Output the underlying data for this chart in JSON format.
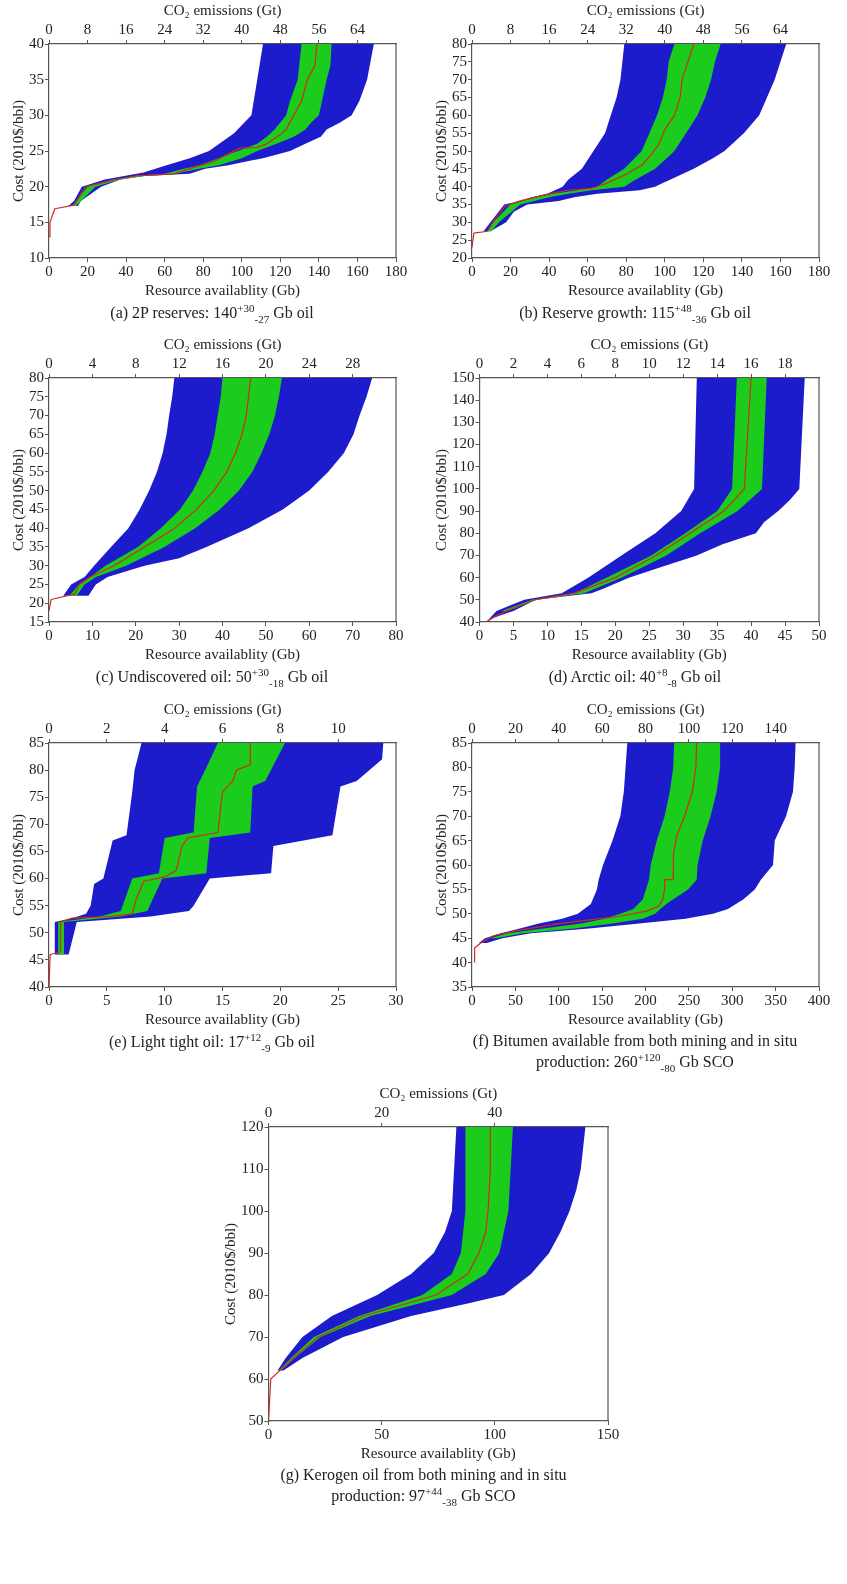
{
  "chart_data": [
    {
      "type": "line",
      "title": "(a) 2P reserves: 140$^{+30}$$_{-27}$ Gb oil",
      "xlabel": "Resource availablity (Gb)",
      "ylabel": "Cost (2010$/bbl)",
      "x2label": "CO₂ emissions (Gt)",
      "xlim": [
        0,
        180
      ],
      "xticks": [
        0,
        20,
        40,
        60,
        80,
        100,
        120,
        140,
        160,
        180
      ],
      "x2lim": [
        0,
        72
      ],
      "x2ticks": [
        0,
        8,
        16,
        24,
        32,
        40,
        48,
        56,
        64
      ],
      "ylim": [
        10,
        40
      ],
      "yticks": [
        10,
        15,
        20,
        25,
        30,
        35,
        40
      ],
      "series": [
        {
          "type": "area",
          "color": "#1c1ccc",
          "x": [
            10,
            13,
            17,
            29,
            39,
            49,
            61,
            73,
            83,
            96,
            105,
            108,
            111,
            168.5,
            165,
            161,
            157,
            151,
            144,
            141,
            133,
            125,
            111,
            93,
            81,
            73,
            49,
            37,
            27,
            16.5,
            15
          ],
          "values": [
            17.3,
            18,
            20,
            21,
            21.5,
            22,
            23,
            24,
            25,
            27.5,
            30,
            35,
            40,
            40,
            35,
            32,
            30,
            29,
            28,
            27,
            26,
            25,
            24,
            23,
            22.5,
            21.8,
            21.5,
            21,
            20,
            18,
            17.3
          ]
        },
        {
          "type": "area",
          "color": "#1ccc1c",
          "x": [
            12,
            20,
            33,
            45,
            60,
            70,
            78,
            88,
            98,
            108,
            113,
            117,
            120,
            123,
            125,
            129,
            131,
            146.6,
            146,
            144,
            140,
            136,
            133,
            127,
            118,
            108,
            100,
            88,
            78,
            65,
            50,
            37,
            24,
            14
          ],
          "values": [
            17.3,
            20,
            21,
            21.5,
            21.8,
            22.5,
            23,
            24,
            25,
            26,
            27,
            28,
            29,
            30,
            32,
            35,
            40,
            40,
            37,
            35,
            30,
            29,
            28,
            27,
            26,
            25,
            24,
            23,
            22.5,
            21.8,
            21.5,
            21,
            20,
            17.3
          ]
        },
        {
          "type": "line",
          "color": "#d22a1a",
          "x": [
            0,
            0.5,
            3,
            13,
            19,
            35,
            45,
            65,
            75,
            85,
            99,
            108,
            113,
            120,
            123,
            127,
            131,
            134,
            138,
            139
          ],
          "values": [
            13,
            15,
            16.9,
            17.4,
            20,
            21,
            21.5,
            21.8,
            22.7,
            23.5,
            25.4,
            25.5,
            26,
            27.3,
            28,
            30,
            32,
            35,
            37,
            40
          ]
        }
      ]
    },
    {
      "type": "line",
      "title": "(b) Reserve growth: 115$^{+48}$$_{-36}$ Gb oil",
      "xlabel": "Resource availablity (Gb)",
      "ylabel": "Cost (2010$/bbl)",
      "x2label": "CO₂ emissions (Gt)",
      "xlim": [
        0,
        180
      ],
      "xticks": [
        0,
        20,
        40,
        60,
        80,
        100,
        120,
        140,
        160,
        180
      ],
      "x2lim": [
        0,
        72
      ],
      "x2ticks": [
        0,
        8,
        16,
        24,
        32,
        40,
        48,
        56,
        64
      ],
      "ylim": [
        20,
        80
      ],
      "yticks": [
        20,
        25,
        30,
        35,
        40,
        45,
        50,
        55,
        60,
        65,
        70,
        75,
        80
      ],
      "series": [
        {
          "type": "area",
          "color": "#1c1ccc",
          "x": [
            6,
            9.6,
            16.7,
            25,
            31,
            39,
            43,
            47,
            50,
            57,
            63,
            69,
            72,
            75,
            77,
            78,
            79,
            163,
            160,
            157,
            153,
            149,
            141,
            131,
            125,
            115,
            103,
            99,
            95,
            87,
            65,
            53,
            45,
            28.7,
            21.7,
            17.7,
            9.6
          ],
          "values": [
            27.5,
            30,
            35,
            36,
            37,
            38,
            39,
            40,
            42,
            45,
            50,
            55,
            60,
            65,
            70,
            75,
            80,
            80,
            75,
            70,
            65,
            60,
            55,
            50,
            48,
            45,
            42,
            41,
            40,
            39,
            38,
            37,
            36,
            35,
            33,
            30,
            27.5
          ]
        },
        {
          "type": "area",
          "color": "#1ccc1c",
          "x": [
            8,
            11,
            20,
            33,
            42,
            55,
            65,
            70,
            79,
            88,
            92,
            96,
            99,
            101,
            102,
            105,
            129,
            126,
            124,
            121,
            117,
            111,
            105,
            101,
            95,
            85,
            79,
            62,
            50,
            40,
            25,
            14,
            10
          ],
          "values": [
            27.5,
            30,
            35,
            37,
            38,
            39,
            40,
            42,
            45,
            50,
            55,
            60,
            65,
            70,
            75,
            80,
            80,
            75,
            70,
            65,
            60,
            55,
            50,
            48,
            45,
            42,
            40,
            39,
            38,
            37,
            35,
            30,
            27.5
          ]
        },
        {
          "type": "line",
          "color": "#d22a1a",
          "x": [
            0,
            1,
            8,
            12,
            17,
            25,
            40,
            50,
            62,
            70,
            80,
            88,
            93,
            97,
            100,
            105,
            108,
            109,
            112,
            115
          ],
          "values": [
            23,
            27,
            27.5,
            31,
            34.5,
            36,
            38,
            39,
            39.5,
            41,
            43.5,
            46,
            49,
            52,
            56,
            60,
            65,
            70,
            75,
            80
          ]
        }
      ]
    },
    {
      "type": "line",
      "title": "(c) Undiscovered oil: 50$^{+30}$$_{-18}$ Gb oil",
      "xlabel": "Resource availablity (Gb)",
      "ylabel": "Cost (2010$/bbl)",
      "x2label": "CO₂ emissions (Gt)",
      "xlim": [
        0,
        80
      ],
      "xticks": [
        0,
        10,
        20,
        30,
        40,
        50,
        60,
        70,
        80
      ],
      "x2lim": [
        0,
        32
      ],
      "x2ticks": [
        0,
        4,
        8,
        12,
        16,
        20,
        24,
        28
      ],
      "ylim": [
        15,
        80
      ],
      "yticks": [
        15,
        20,
        25,
        30,
        35,
        40,
        45,
        50,
        55,
        60,
        65,
        70,
        75,
        80
      ],
      "series": [
        {
          "type": "area",
          "color": "#1c1ccc",
          "x": [
            3.3,
            5.1,
            8.2,
            10.4,
            14.3,
            18.3,
            20.9,
            23.1,
            24.9,
            26.2,
            27.1,
            27.7,
            28.4,
            28.9,
            74.5,
            73.2,
            71.6,
            70.2,
            68,
            64.4,
            60,
            53.9,
            46,
            36.3,
            30,
            22,
            13.5,
            10.8,
            9.1
          ],
          "values": [
            22,
            25,
            27,
            30,
            35,
            40,
            45,
            50,
            55,
            60,
            65,
            70,
            75,
            80,
            80,
            75,
            70,
            65,
            60,
            55,
            50,
            45,
            40,
            35,
            32,
            30,
            27,
            25,
            22
          ]
        },
        {
          "type": "area",
          "color": "#1ccc1c",
          "x": [
            4.7,
            6.9,
            9.5,
            13,
            20.5,
            25.8,
            30.2,
            33.2,
            35.4,
            37.2,
            38.2,
            38.9,
            39.6,
            40,
            53.7,
            53,
            52.1,
            50.8,
            49,
            46.9,
            43.8,
            39.4,
            33.7,
            26.6,
            17.8,
            10.8,
            8.2,
            6.4
          ],
          "values": [
            22,
            25,
            27,
            30,
            35,
            40,
            45,
            50,
            55,
            60,
            65,
            70,
            75,
            80,
            80,
            75,
            70,
            65,
            60,
            55,
            50,
            45,
            40,
            35,
            30,
            27,
            25,
            22
          ]
        },
        {
          "type": "line",
          "color": "#d22a1a",
          "x": [
            0,
            0.5,
            6,
            7,
            9.5,
            15,
            22,
            29,
            34,
            38,
            41,
            43,
            44.5,
            45.5,
            46,
            46.5
          ],
          "values": [
            18,
            21,
            22.5,
            25,
            27,
            30,
            35,
            40,
            45,
            50,
            55,
            60,
            65,
            70,
            75,
            80
          ]
        }
      ]
    },
    {
      "type": "line",
      "title": "(d) Arctic oil: 40$^{+8}$$_{-8}$ Gb oil",
      "xlabel": "Resource availablity (Gb)",
      "ylabel": "Cost (2010$/bbl)",
      "x2label": "CO₂ emissions (Gt)",
      "xlim": [
        0,
        50
      ],
      "xticks": [
        0,
        5,
        10,
        15,
        20,
        25,
        30,
        35,
        40,
        45,
        50
      ],
      "x2lim": [
        0,
        20
      ],
      "x2ticks": [
        0,
        2,
        4,
        6,
        8,
        10,
        12,
        14,
        16,
        18
      ],
      "ylim": [
        40,
        150
      ],
      "yticks": [
        40,
        50,
        60,
        70,
        80,
        90,
        100,
        110,
        120,
        130,
        140,
        150
      ],
      "series": [
        {
          "type": "area",
          "color": "#1c1ccc",
          "x": [
            1,
            2.5,
            6.6,
            12.1,
            16,
            20.9,
            25.9,
            29.7,
            31.6,
            32,
            47.9,
            47.1,
            45.7,
            44,
            41.9,
            40.7,
            35.8,
            32,
            27,
            22,
            18.2,
            16.5,
            8.3,
            5,
            2.2
          ],
          "values": [
            40,
            45,
            50,
            53,
            60,
            70,
            80,
            90,
            100,
            150,
            150,
            100,
            95,
            90,
            85,
            80,
            75,
            70,
            65,
            60,
            55,
            53,
            50,
            45,
            42
          ]
        },
        {
          "type": "area",
          "color": "#1ccc1c",
          "x": [
            3.3,
            7.7,
            14,
            18.7,
            25.3,
            30.3,
            35,
            37.2,
            37.9,
            42.3,
            41.6,
            38,
            32.5,
            27.5,
            20.9,
            15.4,
            8.5,
            4.1
          ],
          "values": [
            45,
            50,
            53,
            60,
            70,
            80,
            90,
            100,
            150,
            150,
            100,
            90,
            80,
            70,
            60,
            53,
            50,
            45
          ]
        },
        {
          "type": "line",
          "color": "#d22a1a",
          "x": [
            1,
            2,
            4,
            8,
            14,
            20,
            26,
            31,
            36,
            39,
            39.5,
            40
          ],
          "values": [
            40,
            42,
            45,
            50,
            53,
            60,
            70,
            80,
            90,
            100,
            125,
            150
          ]
        }
      ]
    },
    {
      "type": "line",
      "title": "(e) Light tight oil: 17$^{+12}$$_{-9}$ Gb oil",
      "xlabel": "Resource availablity (Gb)",
      "ylabel": "Cost (2010$/bbl)",
      "x2label": "CO₂ emissions (Gt)",
      "xlim": [
        0,
        30
      ],
      "xticks": [
        0,
        5,
        10,
        15,
        20,
        25,
        30
      ],
      "x2lim": [
        0,
        12
      ],
      "x2ticks": [
        0,
        2,
        4,
        6,
        8,
        10
      ],
      "ylim": [
        40,
        85
      ],
      "yticks": [
        40,
        45,
        50,
        55,
        60,
        65,
        70,
        75,
        80,
        85
      ],
      "series": [
        {
          "type": "area",
          "color": "#1c1ccc",
          "x": [
            0.5,
            0.5,
            2,
            3.2,
            3.6,
            3.9,
            4.7,
            5.5,
            6.7,
            7.2,
            7.4,
            8,
            28.9,
            28.8,
            26.6,
            25.2,
            24.5,
            19.4,
            19.2,
            13.9,
            12.5,
            12.1,
            8.8,
            2.4,
            1.7
          ],
          "values": [
            46,
            52,
            52.7,
            53.5,
            55,
            59,
            60,
            67,
            68,
            76,
            80,
            85,
            85,
            82,
            78,
            77,
            68,
            66,
            61,
            60,
            55,
            54,
            53,
            52,
            46
          ]
        },
        {
          "type": "area",
          "color": "#1ccc1c",
          "x": [
            0.8,
            0.8,
            4.4,
            6.2,
            7.2,
            9.5,
            10,
            12.5,
            12.8,
            13.5,
            14.6,
            20.4,
            18.7,
            17.6,
            17.4,
            13.9,
            13.6,
            9.8,
            8.5,
            6.2,
            1.3,
            1.3
          ],
          "values": [
            46,
            52,
            53,
            54,
            60,
            61,
            67.5,
            68.5,
            77,
            80,
            85,
            85,
            78,
            77,
            68.5,
            67.5,
            61,
            60,
            54,
            53,
            52,
            46
          ]
        },
        {
          "type": "line",
          "color": "#d22a1a",
          "x": [
            0,
            0.1,
            1,
            1,
            2,
            5.3,
            7.2,
            7.5,
            8.2,
            10,
            11,
            11.5,
            12,
            14.6,
            15,
            15.9,
            16.2,
            17.4,
            17.4
          ],
          "values": [
            40,
            46,
            46.5,
            52,
            52.7,
            53,
            53.5,
            56,
            59.5,
            60.3,
            61.5,
            66,
            67.5,
            68.5,
            76,
            78,
            80,
            81,
            85
          ]
        }
      ]
    },
    {
      "type": "line",
      "title": "(f) Bitumen available from both mining and in situ production: 260$^{+120}$$_{-80}$ Gb SCO",
      "xlabel": "Resource availablity (Gb)",
      "ylabel": "Cost (2010$/bbl)",
      "x2label": "CO₂ emissions (Gt)",
      "xlim": [
        0,
        400
      ],
      "xticks": [
        0,
        50,
        100,
        150,
        200,
        250,
        300,
        350,
        400
      ],
      "x2lim": [
        0,
        160
      ],
      "x2ticks": [
        0,
        20,
        40,
        60,
        80,
        100,
        120,
        140
      ],
      "ylim": [
        35,
        85
      ],
      "yticks": [
        35,
        40,
        45,
        50,
        55,
        60,
        65,
        70,
        75,
        80,
        85
      ],
      "series": [
        {
          "type": "area",
          "color": "#1c1ccc",
          "x": [
            8,
            15,
            33,
            55,
            77,
            104,
            122,
            137,
            144,
            146,
            151,
            162,
            171,
            175,
            177,
            179,
            373,
            372,
            370,
            362,
            349,
            347,
            333,
            326,
            313,
            295,
            278,
            246,
            193,
            135,
            68,
            35,
            17
          ],
          "values": [
            44,
            45,
            46,
            47,
            48,
            49,
            50,
            52,
            55,
            57,
            60,
            65,
            70,
            75,
            80,
            85,
            85,
            80,
            75,
            70,
            65,
            60,
            57,
            55,
            53,
            51,
            50,
            49,
            48,
            47,
            46,
            45,
            44
          ]
        },
        {
          "type": "area",
          "color": "#1ccc1c",
          "x": [
            21,
            41,
            82,
            126,
            153,
            171,
            186,
            197,
            204,
            206,
            213,
            222,
            228,
            232,
            233,
            286,
            286,
            282,
            275,
            266,
            260,
            259,
            249,
            224,
            211,
            197,
            162,
            117,
            59,
            28
          ],
          "values": [
            45,
            46,
            47,
            48,
            49,
            50,
            51,
            53,
            57,
            60,
            65,
            70,
            75,
            80,
            85,
            85,
            80,
            75,
            70,
            65,
            60,
            57,
            55,
            52,
            50,
            49,
            48,
            47,
            46,
            45
          ]
        },
        {
          "type": "line",
          "color": "#d22a1a",
          "x": [
            3,
            3,
            10,
            25,
            50,
            100,
            170,
            200,
            215,
            220,
            222,
            222,
            232,
            232,
            236,
            245,
            254,
            258,
            259
          ],
          "values": [
            40,
            43,
            44,
            45.5,
            46.5,
            48,
            49.5,
            50.5,
            51.5,
            53,
            55,
            57,
            57,
            62,
            66,
            70,
            75,
            80,
            85
          ]
        }
      ]
    },
    {
      "type": "line",
      "title": "(g) Kerogen oil from both mining and in situ production: 97$^{+44}$$_{-38}$ Gb SCO",
      "xlabel": "Resource availablity (Gb)",
      "ylabel": "Cost (2010$/bbl)",
      "x2label": "CO₂ emissions (Gt)",
      "xlim": [
        0,
        150
      ],
      "xticks": [
        0,
        50,
        100,
        150
      ],
      "x2lim": [
        0,
        60
      ],
      "x2ticks": [
        0,
        20,
        40
      ],
      "ylim": [
        50,
        120
      ],
      "yticks": [
        50,
        60,
        70,
        80,
        90,
        100,
        110,
        120
      ],
      "series": [
        {
          "type": "area",
          "color": "#1c1ccc",
          "x": [
            4,
            7.6,
            15,
            28,
            48,
            63,
            73,
            78,
            81,
            82,
            83,
            140,
            138,
            136,
            133,
            129,
            124,
            116,
            104,
            88,
            63,
            33,
            15,
            6.6
          ],
          "values": [
            62,
            65,
            70,
            75,
            80,
            85,
            90,
            95,
            100,
            110,
            120,
            120,
            110,
            105,
            100,
            95,
            90,
            85,
            80,
            78,
            75,
            70,
            65,
            62
          ]
        },
        {
          "type": "area",
          "color": "#1ccc1c",
          "x": [
            4.5,
            10,
            20,
            40,
            68,
            81,
            85,
            87,
            87,
            108,
            107,
            106,
            102,
            96,
            81,
            45,
            23,
            11.6,
            5.6
          ],
          "values": [
            62,
            65,
            70,
            75,
            80,
            85,
            90,
            100,
            120,
            120,
            110,
            100,
            90,
            85,
            80,
            75,
            70,
            65,
            62
          ]
        },
        {
          "type": "line",
          "color": "#d22a1a",
          "x": [
            0,
            1,
            5,
            11,
            22,
            42,
            74,
            88,
            93,
            96,
            97,
            98,
            98
          ],
          "values": [
            50,
            60,
            62,
            65,
            70,
            75,
            80,
            85,
            90,
            95,
            100,
            110,
            120
          ]
        }
      ]
    }
  ]
}
